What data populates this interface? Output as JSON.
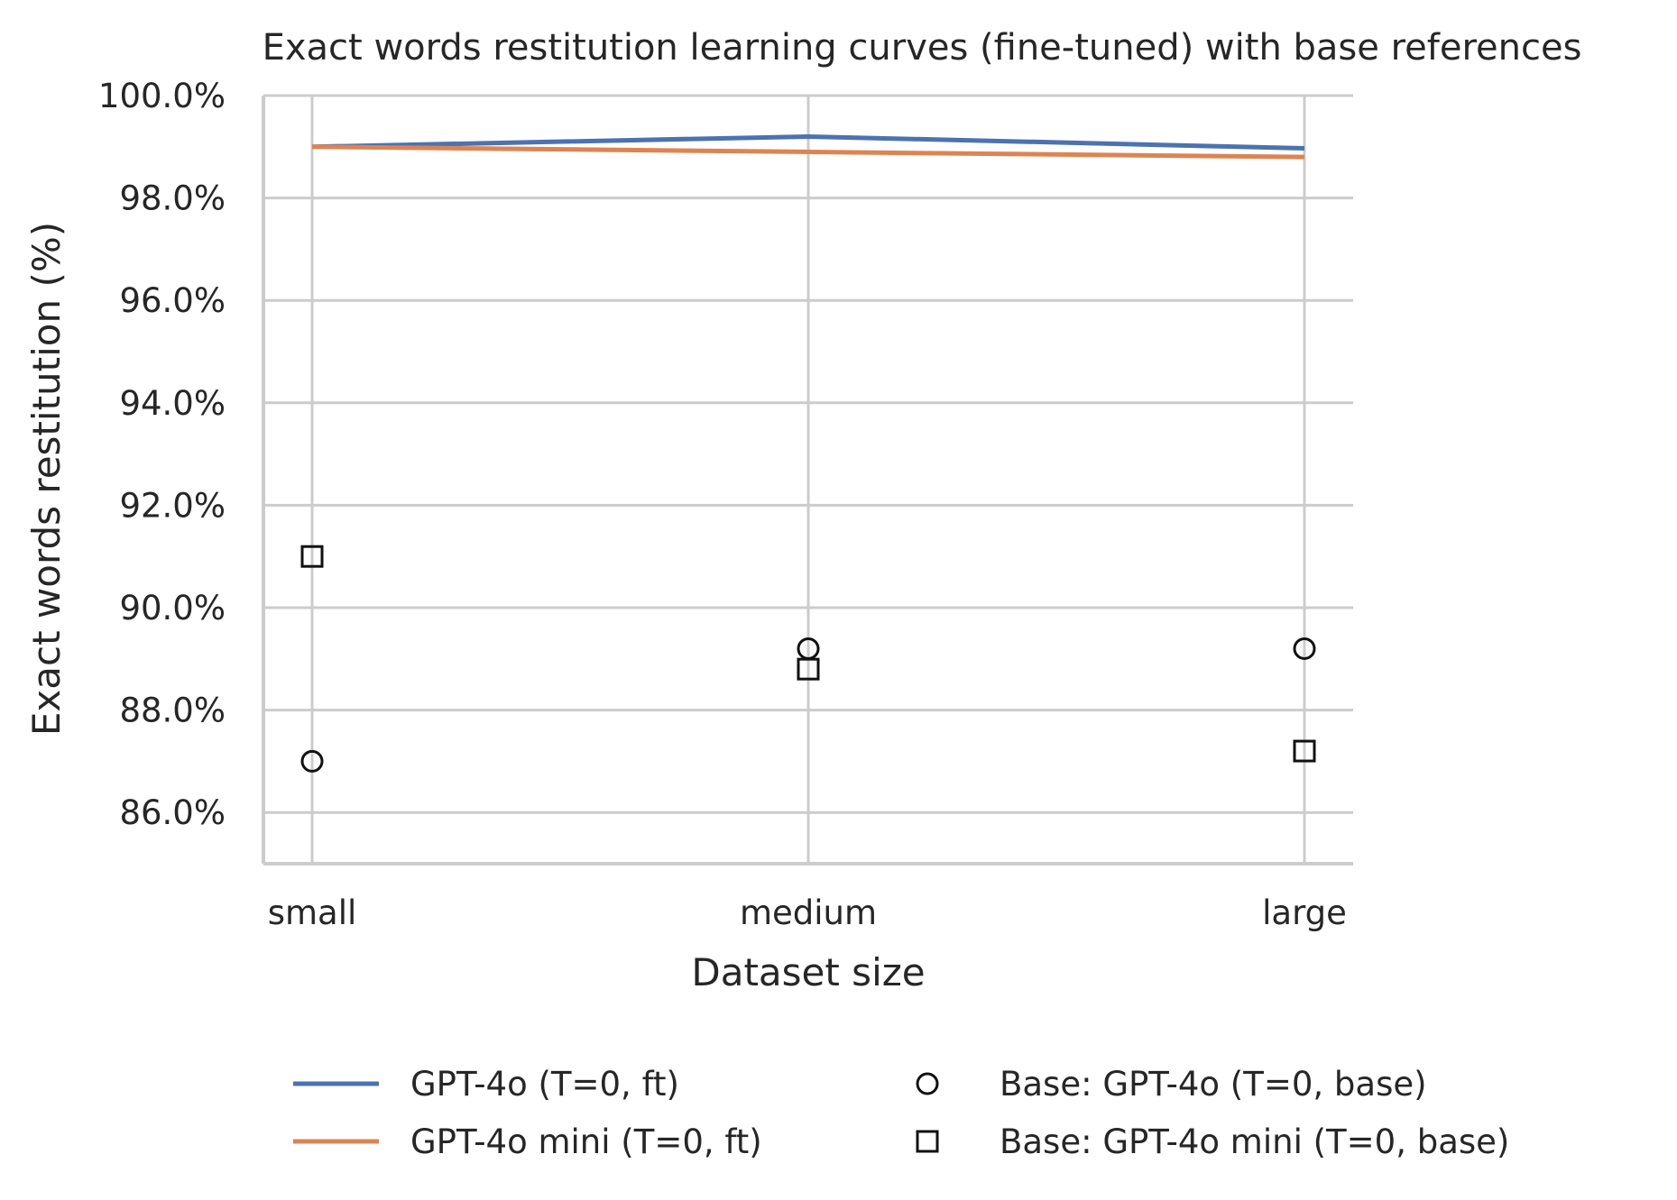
{
  "chart_data": {
    "type": "line",
    "title": "Exact words restitution learning curves (fine-tuned) with base references",
    "xlabel": "Dataset size",
    "ylabel": "Exact words restitution (%)",
    "categories": [
      "small",
      "medium",
      "large"
    ],
    "ylim": [
      85.0,
      100.0
    ],
    "yticks": [
      86.0,
      88.0,
      90.0,
      92.0,
      94.0,
      96.0,
      98.0,
      100.0
    ],
    "ytick_labels": [
      "86.0%",
      "88.0%",
      "90.0%",
      "92.0%",
      "94.0%",
      "96.0%",
      "98.0%",
      "100.0%"
    ],
    "grid": true,
    "legend_position": "bottom",
    "series": [
      {
        "name": "GPT-4o (T=0, ft)",
        "kind": "line",
        "color": "#4c72b0",
        "values": [
          99.0,
          99.2,
          98.97
        ]
      },
      {
        "name": "GPT-4o mini (T=0, ft)",
        "kind": "line",
        "color": "#dd8452",
        "values": [
          99.0,
          98.9,
          98.8
        ]
      },
      {
        "name": "Base: GPT-4o (T=0, base)",
        "kind": "marker",
        "marker": "circle",
        "color": "#111111",
        "values": [
          87.0,
          89.2,
          89.2
        ]
      },
      {
        "name": "Base: GPT-4o mini (T=0, base)",
        "kind": "marker",
        "marker": "square",
        "color": "#111111",
        "values": [
          91.0,
          88.8,
          87.2
        ]
      }
    ]
  }
}
